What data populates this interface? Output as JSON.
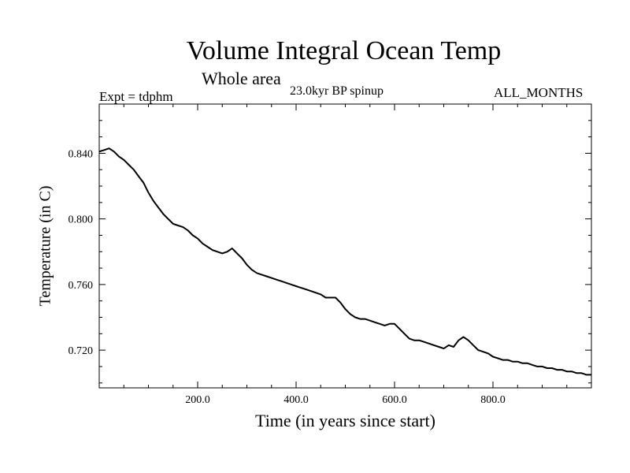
{
  "chart_data": {
    "type": "line",
    "title": "Volume Integral Ocean Temp",
    "subtitle": "Whole area",
    "annotations": {
      "left": "Expt = tdphm",
      "center": "23.0kyr BP spinup",
      "right": "ALL_MONTHS"
    },
    "xlabel": "Time (in years since start)",
    "ylabel": "Temperature (in C)",
    "xlim": [
      0,
      1000
    ],
    "ylim": [
      0.697,
      0.87
    ],
    "xticks": [
      200,
      400,
      600,
      800
    ],
    "xtick_labels": [
      "200.0",
      "400.0",
      "600.0",
      "800.0"
    ],
    "yticks": [
      0.72,
      0.76,
      0.8,
      0.84
    ],
    "ytick_labels": [
      "0.720",
      "0.760",
      "0.800",
      "0.840"
    ],
    "grid": false,
    "series": [
      {
        "name": "Volume integral ocean temperature",
        "x": [
          0,
          10,
          20,
          30,
          40,
          50,
          60,
          70,
          80,
          90,
          100,
          110,
          120,
          130,
          140,
          150,
          160,
          170,
          180,
          190,
          200,
          210,
          220,
          230,
          240,
          250,
          260,
          270,
          280,
          290,
          300,
          310,
          320,
          330,
          340,
          350,
          360,
          370,
          380,
          390,
          400,
          410,
          420,
          430,
          440,
          450,
          460,
          470,
          480,
          490,
          500,
          510,
          520,
          530,
          540,
          550,
          560,
          570,
          580,
          590,
          600,
          610,
          620,
          630,
          640,
          650,
          660,
          670,
          680,
          690,
          700,
          710,
          720,
          730,
          740,
          750,
          760,
          770,
          780,
          790,
          800,
          810,
          820,
          830,
          840,
          850,
          860,
          870,
          880,
          890,
          900,
          910,
          920,
          930,
          940,
          950,
          960,
          970,
          980,
          990,
          1000
        ],
        "values": [
          0.841,
          0.842,
          0.843,
          0.841,
          0.838,
          0.836,
          0.833,
          0.83,
          0.826,
          0.822,
          0.816,
          0.811,
          0.807,
          0.803,
          0.8,
          0.797,
          0.796,
          0.795,
          0.793,
          0.79,
          0.788,
          0.785,
          0.783,
          0.781,
          0.78,
          0.779,
          0.78,
          0.782,
          0.779,
          0.776,
          0.772,
          0.769,
          0.767,
          0.766,
          0.765,
          0.764,
          0.763,
          0.762,
          0.761,
          0.76,
          0.759,
          0.758,
          0.757,
          0.756,
          0.755,
          0.754,
          0.752,
          0.752,
          0.752,
          0.749,
          0.745,
          0.742,
          0.74,
          0.739,
          0.739,
          0.738,
          0.737,
          0.736,
          0.735,
          0.736,
          0.736,
          0.733,
          0.73,
          0.727,
          0.726,
          0.726,
          0.725,
          0.724,
          0.723,
          0.722,
          0.721,
          0.723,
          0.722,
          0.726,
          0.728,
          0.726,
          0.723,
          0.72,
          0.719,
          0.718,
          0.716,
          0.715,
          0.714,
          0.714,
          0.713,
          0.713,
          0.712,
          0.712,
          0.711,
          0.71,
          0.71,
          0.709,
          0.709,
          0.708,
          0.708,
          0.707,
          0.707,
          0.706,
          0.706,
          0.705,
          0.705
        ]
      }
    ]
  }
}
